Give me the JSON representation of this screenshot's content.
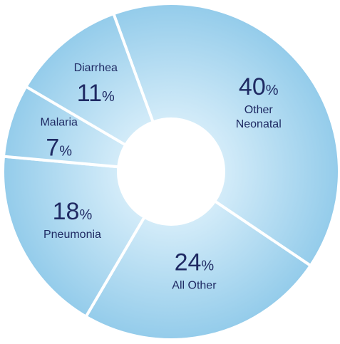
{
  "chart_data": {
    "type": "pie",
    "donut": true,
    "title": "",
    "colors": {
      "fill_edge": "#92cbea",
      "fill_center": "#d4ecf9",
      "separator": "#ffffff",
      "text": "#1f2a63"
    },
    "slices": [
      {
        "name": "Other Neonatal",
        "name_lines": [
          "Other",
          "Neonatal"
        ],
        "value": 40,
        "number": "40",
        "percent_sign": "%"
      },
      {
        "name": "All Other",
        "name_lines": [
          "All Other"
        ],
        "value": 24,
        "number": "24",
        "percent_sign": "%"
      },
      {
        "name": "Pneumonia",
        "name_lines": [
          "Pneumonia"
        ],
        "value": 18,
        "number": "18",
        "percent_sign": "%"
      },
      {
        "name": "Malaria",
        "name_lines": [
          "Malaria"
        ],
        "value": 7,
        "number": "7",
        "percent_sign": "%"
      },
      {
        "name": "Diarrhea",
        "name_lines": [
          "Diarrhea"
        ],
        "value": 11,
        "number": "11",
        "percent_sign": "%"
      }
    ]
  }
}
